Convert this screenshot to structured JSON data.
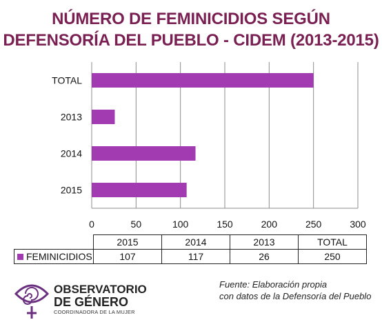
{
  "title_line1": "NÚMERO DE FEMINICIDIOS SEGÚN",
  "title_line2": "DEFENSORÍA DEL PUEBLO - CIDEM (2013-2015)",
  "chart_data": {
    "type": "bar",
    "orientation": "horizontal",
    "categories": [
      "TOTAL",
      "2013",
      "2014",
      "2015"
    ],
    "series": [
      {
        "name": "FEMINICIDIOS",
        "values": [
          250,
          26,
          117,
          107
        ],
        "color": "#a23ab2"
      }
    ],
    "xlim": [
      0,
      300
    ],
    "xticks": [
      "0",
      "50",
      "100",
      "150",
      "200",
      "250",
      "300"
    ],
    "grid": "vertical"
  },
  "table": {
    "headers": [
      "2015",
      "2014",
      "2013",
      "TOTAL"
    ],
    "series_label": "FEMINICIDIOS",
    "values": [
      "107",
      "117",
      "26",
      "250"
    ]
  },
  "logo": {
    "line1": "OBSERVATORIO",
    "line2": "DE GÉNERO",
    "line3": "COORDINADORA DE LA MUJER",
    "color": "#6b2f7f"
  },
  "source_line1": "Fuente: Elaboración propia",
  "source_line2": "con datos de la Defensoría del Pueblo"
}
